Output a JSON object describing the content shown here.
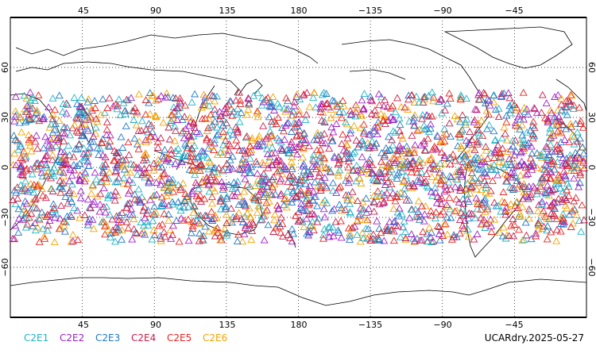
{
  "map": {
    "projection": "cylindrical-equidistant-centered-180",
    "lon_ticks": [
      "45",
      "90",
      "135",
      "180",
      "−135",
      "−90",
      "−45"
    ],
    "lat_ticks": [
      "60",
      "30",
      "0",
      "−30",
      "−60"
    ],
    "grid": "dotted",
    "marker": "open-triangle",
    "observation_band_lat": [
      -45,
      45
    ]
  },
  "legend": [
    {
      "label": "C2E1",
      "color": "#1fb3c6"
    },
    {
      "label": "C2E2",
      "color": "#a020c8"
    },
    {
      "label": "C2E3",
      "color": "#1f78c8"
    },
    {
      "label": "C2E4",
      "color": "#c81e4a"
    },
    {
      "label": "C2E5",
      "color": "#e8221e"
    },
    {
      "label": "C2E6",
      "color": "#f5a300"
    }
  ],
  "footer": {
    "product_label": "UCARdry.2025-05-27"
  }
}
